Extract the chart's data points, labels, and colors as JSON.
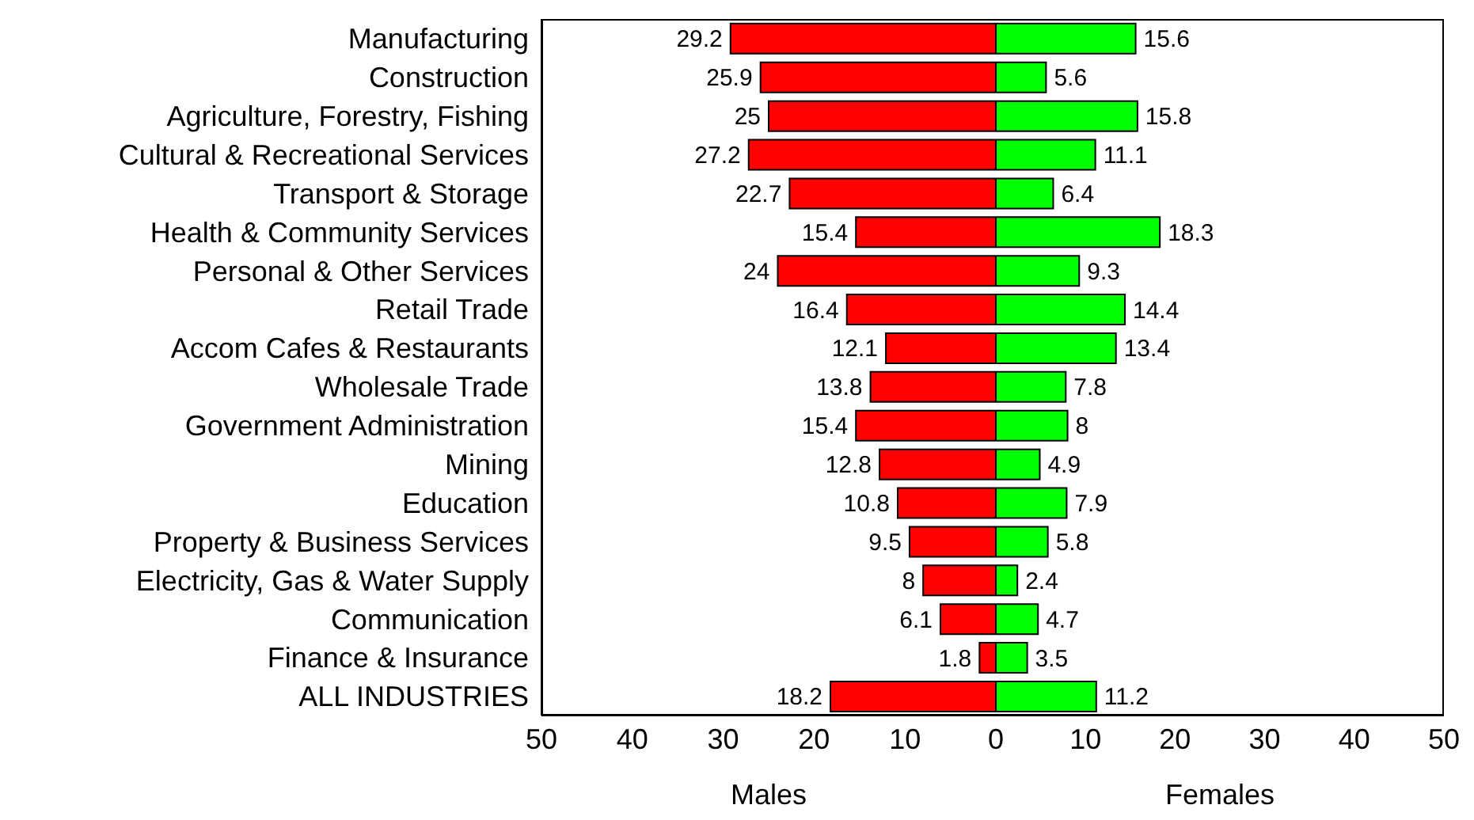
{
  "chart_data": [
    {
      "type": "bar",
      "orientation": "horizontal",
      "xlabel": "Males",
      "categories": [
        "Manufacturing",
        "Construction",
        "Agriculture, Forestry, Fishing",
        "Cultural & Recreational Services",
        "Transport & Storage",
        "Health & Community Services",
        "Personal & Other Services",
        "Retail Trade",
        "Accom Cafes & Restaurants",
        "Wholesale Trade",
        "Government Administration",
        "Mining",
        "Education",
        "Property & Business Services",
        "Electricity, Gas & Water Supply",
        "Communication",
        "Finance & Insurance",
        "ALL INDUSTRIES"
      ],
      "values": [
        29.2,
        25.9,
        25,
        27.2,
        22.7,
        15.4,
        24,
        16.4,
        12.1,
        13.8,
        15.4,
        12.8,
        10.8,
        9.5,
        8,
        6.1,
        1.8,
        18.2
      ],
      "color": "#ff0000",
      "xlim": [
        50,
        0
      ],
      "xticks": [
        50,
        40,
        30,
        20,
        10,
        0
      ],
      "data_labels": true
    },
    {
      "type": "bar",
      "orientation": "horizontal",
      "xlabel": "Females",
      "categories": [
        null,
        null,
        null,
        null,
        null,
        null,
        null,
        null,
        null,
        null,
        null,
        null,
        null,
        null,
        null,
        null,
        null,
        null
      ],
      "values": [
        15.6,
        5.6,
        15.8,
        11.1,
        6.4,
        18.3,
        9.3,
        14.4,
        13.4,
        7.8,
        8,
        4.9,
        7.9,
        5.8,
        2.4,
        4.7,
        3.5,
        11.2
      ],
      "color": "#00ff00",
      "xlim": [
        0,
        50
      ],
      "xticks": [
        10,
        20,
        30,
        40,
        50
      ],
      "data_labels": true,
      "tick_labels": "x"
    }
  ]
}
